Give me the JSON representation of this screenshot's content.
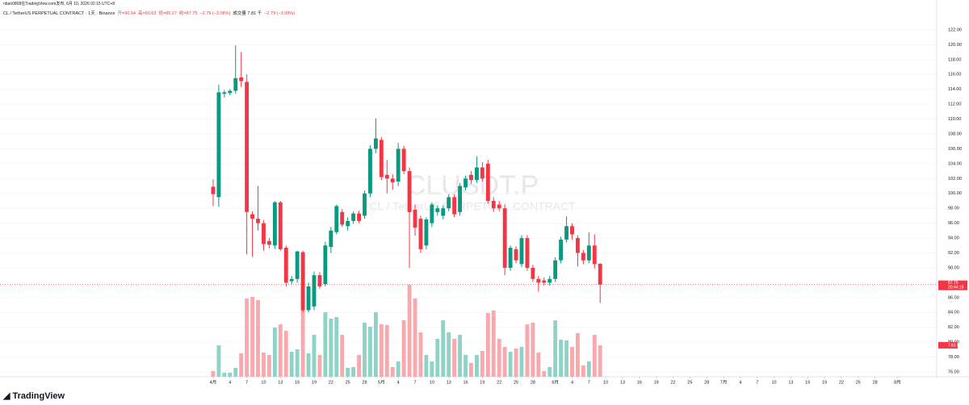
{
  "header": {
    "publisher": "nban0808在TradingView.com发布, 6月 10, 2026 02:15 UTC+8",
    "symbol": "CL / TetherUS PERPETUAL CONTRACT · 1天 · Binance",
    "open": "开=90.54",
    "high": "高=90.63",
    "low": "低=85.27",
    "close": "收=87.75",
    "change": "−2.79 (−3.08%)",
    "volume": "成交量 7.81 千",
    "volume_change": "−2.79 (−3.08%)"
  },
  "footer": {
    "brand": "TradingView"
  },
  "chart_data": {
    "type": "candlestick",
    "watermark": "CLUSDT.P",
    "watermark_subtitle": "CL / TetherUS PERPETUAL CONTRACT",
    "up_color": "#089981",
    "down_color": "#f23645",
    "volume_up_color": "#8fd3c6",
    "volume_down_color": "#f7a9ae",
    "grid": true,
    "x": [
      0,
      1,
      2,
      3,
      4,
      5,
      6,
      7,
      8,
      9,
      10,
      11,
      12,
      13,
      14,
      15,
      16,
      17,
      18,
      19,
      20,
      21,
      22,
      23,
      24,
      25,
      26,
      27,
      28,
      29,
      30,
      31,
      32,
      33,
      34,
      35,
      36,
      37,
      38,
      39,
      40,
      41,
      42,
      43,
      44,
      45,
      46,
      47,
      48,
      49,
      50,
      51,
      52,
      53,
      54,
      55,
      56,
      57,
      58,
      59,
      60,
      61,
      62,
      63,
      64,
      65,
      66,
      67,
      68,
      69
    ],
    "open": [
      100.9,
      99.5,
      113.4,
      113.5,
      113.8,
      115.6,
      115.0,
      97.2,
      96.6,
      96.0,
      93.6,
      93.0,
      98.8,
      92.7,
      88.2,
      88.5,
      92.1,
      84.3,
      84.8,
      89.0,
      87.8,
      92.8,
      94.8,
      97.5,
      95.6,
      96.3,
      97.3,
      97.0,
      100.0,
      106.0,
      107.2,
      102.5,
      102.0,
      101.6,
      106.0,
      103.0,
      97.8,
      96.6,
      93.0,
      96.0,
      97.5,
      97.0,
      98.0,
      99.5,
      97.5,
      100.8,
      102.5,
      101.8,
      103.5,
      104.0,
      99.0,
      98.5,
      98.0,
      90.0,
      92.5,
      90.5,
      94.0,
      90.0,
      88.5,
      88.3,
      88.0,
      88.5,
      91.0,
      93.8,
      95.6,
      94.0,
      92.0,
      91.0,
      93.0,
      90.54
    ],
    "high": [
      101.9,
      114.6,
      113.9,
      114.0,
      119.9,
      119.0,
      116.0,
      97.6,
      101.0,
      96.4,
      94.0,
      99.0,
      99.0,
      93.0,
      88.9,
      92.3,
      92.3,
      88.0,
      89.5,
      89.4,
      93.5,
      95.5,
      98.5,
      97.9,
      96.8,
      97.6,
      97.7,
      100.4,
      106.5,
      110.1,
      107.6,
      104.5,
      102.6,
      106.8,
      106.4,
      103.5,
      98.5,
      97.0,
      96.8,
      98.8,
      98.4,
      98.4,
      99.9,
      99.9,
      101.4,
      102.4,
      103.0,
      105.0,
      104.2,
      104.5,
      99.5,
      99.0,
      98.5,
      93.0,
      92.9,
      94.4,
      94.4,
      90.4,
      88.9,
      88.7,
      88.9,
      91.4,
      94.2,
      96.9,
      96.0,
      94.4,
      92.4,
      94.8,
      94.5,
      90.63
    ],
    "low": [
      98.3,
      98.2,
      112.9,
      113.2,
      113.4,
      114.3,
      91.8,
      91.5,
      95.0,
      92.3,
      92.6,
      92.5,
      92.3,
      87.5,
      87.8,
      88.0,
      84.0,
      84.0,
      84.3,
      87.2,
      87.5,
      92.0,
      94.5,
      95.5,
      95.0,
      95.9,
      96.0,
      96.6,
      99.5,
      105.4,
      101.8,
      100.0,
      100.5,
      101.0,
      102.6,
      90.0,
      94.3,
      92.0,
      92.5,
      95.5,
      97.0,
      96.5,
      97.6,
      96.8,
      97.0,
      100.4,
      101.3,
      101.4,
      101.6,
      98.6,
      97.5,
      97.6,
      89.0,
      89.6,
      90.6,
      90.1,
      89.6,
      88.1,
      86.8,
      87.6,
      87.6,
      88.1,
      90.6,
      93.4,
      93.8,
      90.2,
      90.5,
      90.6,
      89.9,
      85.27
    ],
    "close": [
      99.9,
      113.6,
      113.6,
      113.8,
      115.5,
      115.1,
      97.5,
      96.6,
      96.0,
      93.2,
      93.1,
      98.8,
      92.5,
      88.0,
      88.5,
      92.2,
      84.3,
      87.5,
      89.0,
      87.5,
      93.0,
      95.0,
      98.3,
      95.8,
      96.3,
      97.3,
      96.3,
      100.0,
      106.0,
      107.4,
      102.2,
      102.0,
      101.5,
      106.0,
      103.0,
      97.5,
      95.4,
      92.5,
      96.5,
      98.5,
      98.0,
      98.0,
      99.5,
      97.2,
      101.0,
      102.0,
      101.8,
      103.5,
      102.0,
      99.0,
      98.0,
      98.0,
      90.0,
      92.7,
      91.0,
      94.0,
      90.0,
      88.5,
      88.0,
      88.0,
      88.5,
      91.0,
      93.8,
      95.6,
      94.5,
      92.0,
      91.0,
      93.0,
      90.5,
      87.75
    ],
    "volume": [
      1.4,
      7.8,
      1.0,
      1.0,
      2.2,
      5.8,
      19.4,
      19.8,
      19.0,
      6.0,
      5.4,
      12.2,
      13.0,
      11.4,
      6.2,
      6.8,
      22.4,
      5.8,
      10.4,
      5.4,
      16.0,
      14.4,
      14.8,
      10.4,
      2.2,
      2.4,
      5.4,
      13.4,
      12.4,
      16.0,
      13.0,
      12.8,
      2.4,
      3.8,
      14.0,
      22.8,
      19.4,
      11.0,
      5.4,
      3.8,
      9.4,
      14.0,
      11.0,
      9.4,
      10.4,
      5.4,
      3.4,
      5.4,
      6.4,
      15.8,
      16.4,
      9.4,
      7.4,
      6.2,
      7.0,
      7.4,
      13.0,
      13.4,
      6.0,
      1.4,
      2.4,
      14.0,
      9.2,
      9.0,
      7.4,
      10.8,
      2.8,
      3.8,
      10.4,
      7.81
    ],
    "last_price_label": "87.75",
    "countdown": "20:44:18",
    "last_volume_label": "7.81 K",
    "xlim": [
      -38,
      129
    ],
    "ylim": [
      75.35,
      126.01
    ],
    "volume_ylim": [
      0,
      93.4
    ],
    "yticks": [
      {
        "value": 76,
        "label": "76.00"
      },
      {
        "value": 78,
        "label": "78.00"
      },
      {
        "value": 80,
        "label": "80.00"
      },
      {
        "value": 82,
        "label": "82.00"
      },
      {
        "value": 84,
        "label": "84.00"
      },
      {
        "value": 86,
        "label": "86.00"
      },
      {
        "value": 88,
        "label": "88.00"
      },
      {
        "value": 90,
        "label": "90.00"
      },
      {
        "value": 92,
        "label": "92.00"
      },
      {
        "value": 94,
        "label": "94.00"
      },
      {
        "value": 96,
        "label": "96.00"
      },
      {
        "value": 98,
        "label": "98.00"
      },
      {
        "value": 100,
        "label": "100.00"
      },
      {
        "value": 102,
        "label": "102.00"
      },
      {
        "value": 104,
        "label": "104.00"
      },
      {
        "value": 106,
        "label": "106.00"
      },
      {
        "value": 108,
        "label": "108.00"
      },
      {
        "value": 110,
        "label": "110.00"
      },
      {
        "value": 112,
        "label": "112.00"
      },
      {
        "value": 114,
        "label": "114.00"
      },
      {
        "value": 116,
        "label": "116.00"
      },
      {
        "value": 118,
        "label": "118.00"
      },
      {
        "value": 120,
        "label": "120.00"
      },
      {
        "value": 122,
        "label": "122.00"
      }
    ],
    "xticks": [
      {
        "value": 0,
        "label": "4月"
      },
      {
        "value": 3,
        "label": "4"
      },
      {
        "value": 6,
        "label": "7"
      },
      {
        "value": 9,
        "label": "10"
      },
      {
        "value": 12,
        "label": "13"
      },
      {
        "value": 15,
        "label": "16"
      },
      {
        "value": 18,
        "label": "19"
      },
      {
        "value": 21,
        "label": "22"
      },
      {
        "value": 24,
        "label": "25"
      },
      {
        "value": 27,
        "label": "28"
      },
      {
        "value": 30,
        "label": "5月"
      },
      {
        "value": 33,
        "label": "4"
      },
      {
        "value": 36,
        "label": "7"
      },
      {
        "value": 39,
        "label": "10"
      },
      {
        "value": 42,
        "label": "13"
      },
      {
        "value": 45,
        "label": "16"
      },
      {
        "value": 48,
        "label": "19"
      },
      {
        "value": 51,
        "label": "22"
      },
      {
        "value": 54,
        "label": "25"
      },
      {
        "value": 57,
        "label": "28"
      },
      {
        "value": 61,
        "label": "6月"
      },
      {
        "value": 64,
        "label": "4"
      },
      {
        "value": 67,
        "label": "7"
      },
      {
        "value": 70,
        "label": "10"
      },
      {
        "value": 73,
        "label": "13"
      },
      {
        "value": 76,
        "label": "16"
      },
      {
        "value": 79,
        "label": "19"
      },
      {
        "value": 82,
        "label": "22"
      },
      {
        "value": 85,
        "label": "25"
      },
      {
        "value": 88,
        "label": "28"
      },
      {
        "value": 91,
        "label": "7月"
      },
      {
        "value": 94,
        "label": "4"
      },
      {
        "value": 97,
        "label": "7"
      },
      {
        "value": 100,
        "label": "10"
      },
      {
        "value": 103,
        "label": "13"
      },
      {
        "value": 106,
        "label": "16"
      },
      {
        "value": 109,
        "label": "19"
      },
      {
        "value": 112,
        "label": "22"
      },
      {
        "value": 115,
        "label": "25"
      },
      {
        "value": 118,
        "label": "28"
      },
      {
        "value": 122,
        "label": "8月"
      }
    ]
  }
}
